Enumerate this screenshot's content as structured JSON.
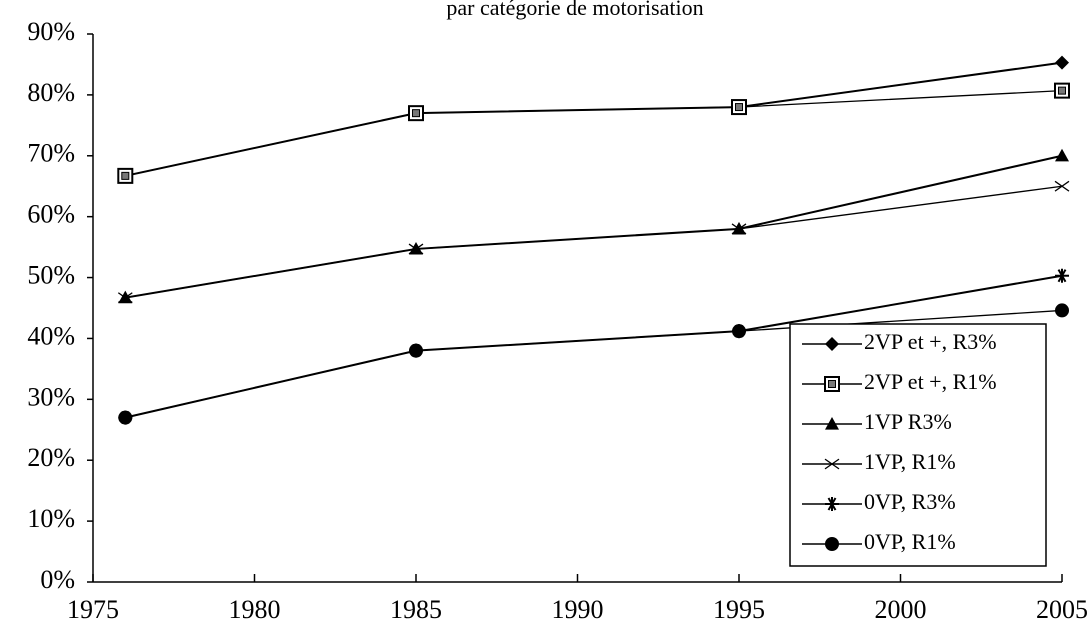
{
  "chart_data": {
    "type": "line",
    "title": "par catégorie de motorisation",
    "x": [
      1976,
      1985,
      1995,
      2005
    ],
    "series": [
      {
        "name": "2VP et +, R3%",
        "color": "#000000",
        "marker": "diamond",
        "values": [
          66.7,
          77,
          78,
          85.3
        ]
      },
      {
        "name": "2VP et +, R1%",
        "color": "#000000",
        "marker": "square",
        "values": [
          66.7,
          77,
          78,
          80.7
        ]
      },
      {
        "name": "1VP  R3%",
        "color": "#000000",
        "marker": "triangle",
        "values": [
          46.7,
          54.7,
          58,
          70
        ]
      },
      {
        "name": "1VP, R1%",
        "color": "#000000",
        "marker": "x",
        "values": [
          46.7,
          54.7,
          58,
          65
        ]
      },
      {
        "name": "0VP, R3%",
        "color": "#000000",
        "marker": "asterisk",
        "values": [
          27,
          38,
          41.2,
          50.3
        ]
      },
      {
        "name": "0VP, R1%",
        "color": "#000000",
        "marker": "circle",
        "values": [
          27,
          38,
          41.2,
          44.6
        ]
      }
    ],
    "xlim": [
      1975,
      2005
    ],
    "xticks": [
      1975,
      1980,
      1985,
      1990,
      1995,
      2000,
      2005
    ],
    "ylim": [
      0,
      90
    ],
    "yticks": [
      {
        "value": 0,
        "label": "0%"
      },
      {
        "value": 10,
        "label": "10%"
      },
      {
        "value": 20,
        "label": "20%"
      },
      {
        "value": 30,
        "label": "30%"
      },
      {
        "value": 40,
        "label": "40%"
      },
      {
        "value": 50,
        "label": "50%"
      },
      {
        "value": 60,
        "label": "60%"
      },
      {
        "value": 70,
        "label": "70%"
      },
      {
        "value": 80,
        "label": "80%"
      },
      {
        "value": 90,
        "label": "90%"
      }
    ],
    "grid": false,
    "legend": "lower right"
  }
}
